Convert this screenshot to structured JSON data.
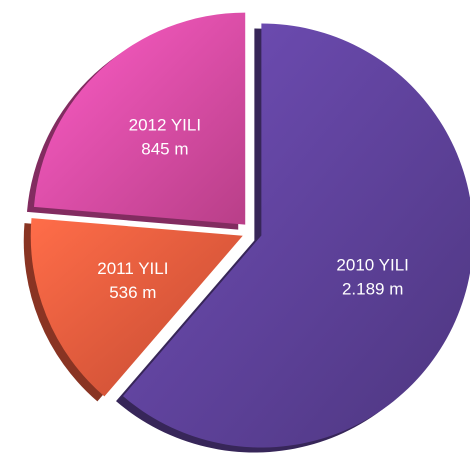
{
  "chart_data": {
    "type": "pie",
    "categories": [
      "2010 YILI",
      "2011 YILI",
      "2012 YILI"
    ],
    "values": [
      2189,
      536,
      845
    ],
    "value_labels": [
      "2.189 m",
      "536 m",
      "845 m"
    ],
    "colors": [
      "#5b3f95",
      "#e5573a",
      "#d94aa0"
    ]
  }
}
